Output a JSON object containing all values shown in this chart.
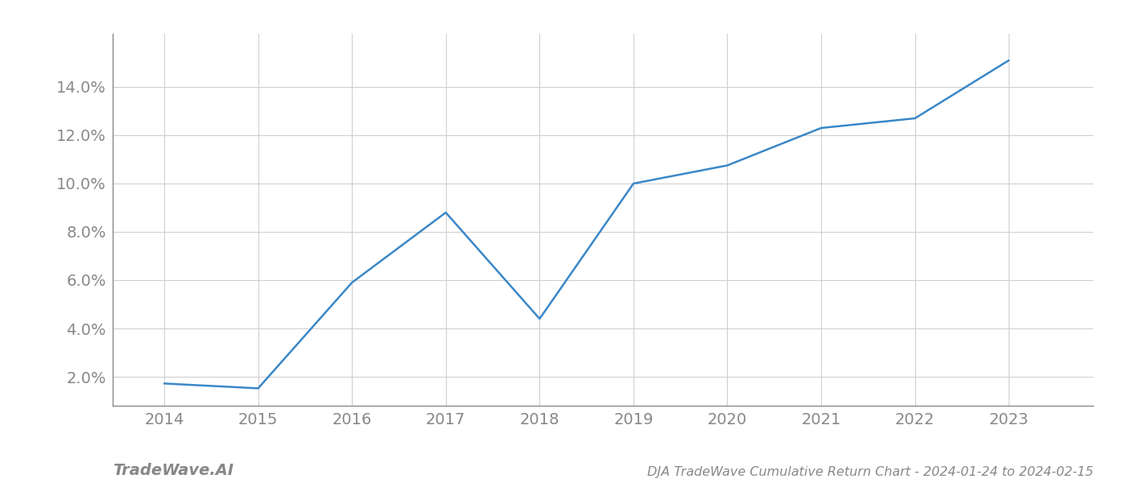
{
  "x_values": [
    2014,
    2015,
    2016,
    2017,
    2018,
    2019,
    2020,
    2021,
    2022,
    2023
  ],
  "y_values": [
    1.72,
    1.52,
    5.9,
    8.8,
    4.4,
    10.0,
    10.75,
    12.3,
    12.7,
    15.1
  ],
  "line_color": "#3a87c8",
  "line_width": 1.8,
  "title": "DJA TradeWave Cumulative Return Chart - 2024-01-24 to 2024-02-15",
  "watermark": "TradeWave.AI",
  "x_ticks": [
    2014,
    2015,
    2016,
    2017,
    2018,
    2019,
    2020,
    2021,
    2022,
    2023
  ],
  "y_ticks": [
    2.0,
    4.0,
    6.0,
    8.0,
    10.0,
    12.0,
    14.0
  ],
  "ylim": [
    0.8,
    16.2
  ],
  "xlim": [
    2013.45,
    2023.9
  ],
  "background_color": "#ffffff",
  "grid_color": "#cccccc",
  "tick_fontsize": 14,
  "title_fontsize": 11.5,
  "watermark_fontsize": 14
}
